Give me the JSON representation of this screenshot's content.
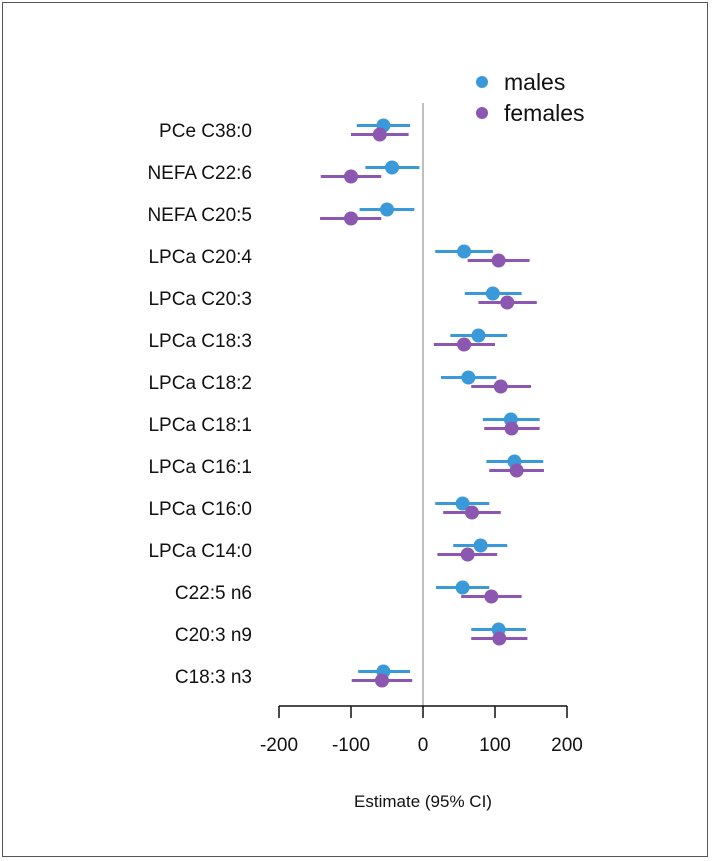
{
  "chart_data": {
    "type": "forest",
    "xlabel": "Estimate (95% CI)",
    "xlim": [
      -200,
      200
    ],
    "xticks": [
      "-200",
      "-100",
      "0",
      "100",
      "200"
    ],
    "xtick_values": [
      -200,
      -100,
      0,
      100,
      200
    ],
    "reference_line": 0,
    "legend_position": "top-right",
    "categories": [
      "PCe C38:0",
      "NEFA C22:6",
      "NEFA C20:5",
      "LPCa C20:4",
      "LPCa C20:3",
      "LPCa C18:3",
      "LPCa C18:2",
      "LPCa C18:1",
      "LPCa C16:1",
      "LPCa C16:0",
      "LPCa C14:0",
      "C22:5 n6",
      "C20:3 n9",
      "C18:3 n3"
    ],
    "series": [
      {
        "name": "males",
        "color": "#3a9ad9",
        "estimate": [
          -55,
          -43,
          -50,
          57,
          97,
          77,
          63,
          122,
          127,
          55,
          80,
          55,
          105,
          -55
        ],
        "lower": [
          -92,
          -80,
          -88,
          17,
          58,
          38,
          25,
          83,
          88,
          17,
          42,
          18,
          67,
          -90
        ],
        "upper": [
          -18,
          -5,
          -12,
          97,
          137,
          117,
          102,
          162,
          167,
          92,
          117,
          92,
          143,
          -18
        ]
      },
      {
        "name": "females",
        "color": "#8b57b0",
        "estimate": [
          -60,
          -100,
          -100,
          105,
          117,
          57,
          108,
          123,
          130,
          68,
          62,
          95,
          106,
          -57
        ],
        "lower": [
          -100,
          -142,
          -143,
          62,
          77,
          15,
          67,
          85,
          92,
          28,
          20,
          53,
          67,
          -99
        ],
        "upper": [
          -20,
          -58,
          -58,
          148,
          158,
          100,
          150,
          162,
          168,
          108,
          103,
          137,
          145,
          -15
        ]
      }
    ]
  }
}
